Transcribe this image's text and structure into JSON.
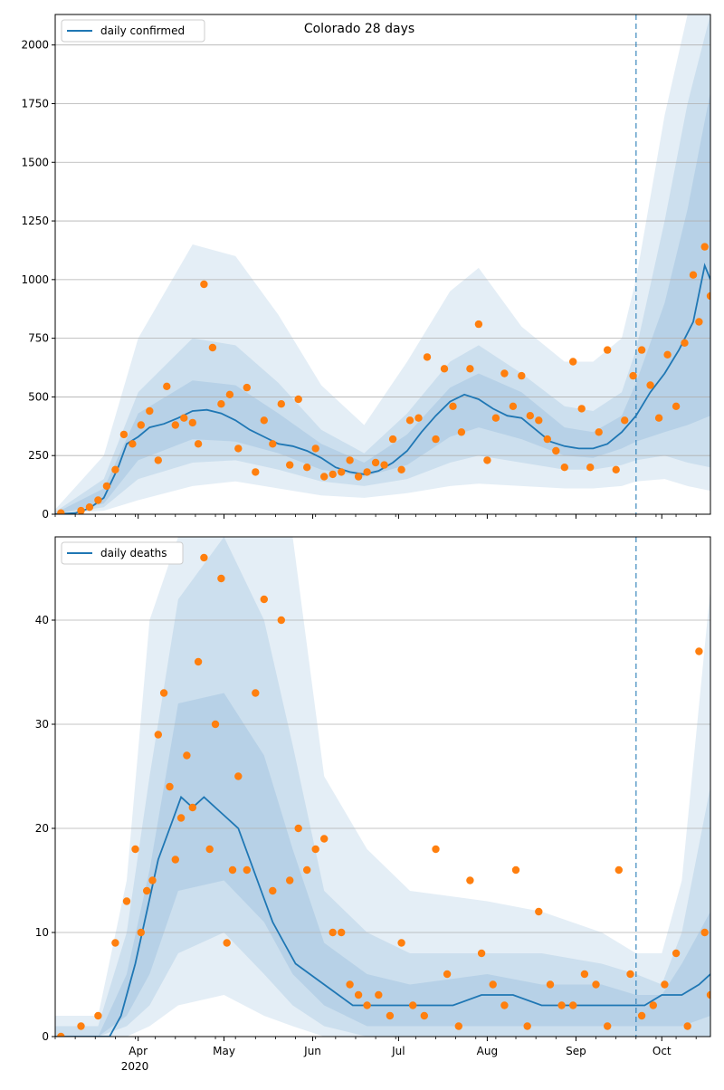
{
  "figure_title": "Colorado 28 days",
  "colors": {
    "line": "#1f77b4",
    "points": "#ff7f0e",
    "band": "#1f77b4",
    "grid": "#b0b0b0"
  },
  "chart_data": [
    {
      "type": "line",
      "panel": "top",
      "title": "Colorado 28 days",
      "legend": "top-left",
      "legend_label": "daily confirmed",
      "grid": "horizontal",
      "xlim": [
        "2020-03-03",
        "2020-10-18"
      ],
      "ylim": [
        0,
        2130
      ],
      "yticks": [
        0,
        250,
        500,
        750,
        1000,
        1250,
        1500,
        1750,
        2000
      ],
      "vline_date": "2020-09-22",
      "line": {
        "x": [
          "2020-03-03",
          "2020-03-10",
          "2020-03-15",
          "2020-03-20",
          "2020-03-25",
          "2020-03-28",
          "2020-04-01",
          "2020-04-05",
          "2020-04-10",
          "2020-04-15",
          "2020-04-20",
          "2020-04-25",
          "2020-04-30",
          "2020-05-05",
          "2020-05-10",
          "2020-05-15",
          "2020-05-20",
          "2020-05-25",
          "2020-05-30",
          "2020-06-04",
          "2020-06-09",
          "2020-06-14",
          "2020-06-19",
          "2020-06-24",
          "2020-06-29",
          "2020-07-04",
          "2020-07-09",
          "2020-07-14",
          "2020-07-19",
          "2020-07-24",
          "2020-07-29",
          "2020-08-03",
          "2020-08-08",
          "2020-08-13",
          "2020-08-18",
          "2020-08-23",
          "2020-08-28",
          "2020-09-02",
          "2020-09-07",
          "2020-09-12",
          "2020-09-17",
          "2020-09-22",
          "2020-09-27",
          "2020-10-02",
          "2020-10-07",
          "2020-10-12",
          "2020-10-16",
          "2020-10-18"
        ],
        "y": [
          0,
          5,
          25,
          70,
          200,
          300,
          330,
          370,
          385,
          410,
          440,
          445,
          430,
          400,
          360,
          330,
          300,
          290,
          270,
          240,
          200,
          180,
          170,
          185,
          220,
          270,
          350,
          420,
          480,
          510,
          490,
          450,
          420,
          410,
          360,
          310,
          290,
          280,
          280,
          300,
          350,
          420,
          520,
          600,
          700,
          820,
          1060,
          1000
        ]
      },
      "bands": [
        {
          "level": "outer",
          "x": [
            "2020-03-03",
            "2020-03-20",
            "2020-04-01",
            "2020-04-20",
            "2020-05-05",
            "2020-05-20",
            "2020-06-04",
            "2020-06-19",
            "2020-07-04",
            "2020-07-19",
            "2020-07-29",
            "2020-08-13",
            "2020-08-28",
            "2020-09-07",
            "2020-09-17",
            "2020-09-22",
            "2020-10-02",
            "2020-10-10",
            "2020-10-18"
          ],
          "low": [
            0,
            15,
            60,
            120,
            140,
            110,
            80,
            70,
            90,
            120,
            130,
            120,
            110,
            110,
            120,
            140,
            150,
            120,
            100
          ],
          "high": [
            20,
            250,
            750,
            1150,
            1100,
            850,
            550,
            380,
            650,
            950,
            1050,
            800,
            650,
            650,
            750,
            1000,
            1700,
            2130,
            2130
          ]
        },
        {
          "level": "middle",
          "x": [
            "2020-03-03",
            "2020-03-20",
            "2020-04-01",
            "2020-04-20",
            "2020-05-05",
            "2020-05-20",
            "2020-06-04",
            "2020-06-19",
            "2020-07-04",
            "2020-07-19",
            "2020-07-29",
            "2020-08-13",
            "2020-08-28",
            "2020-09-07",
            "2020-09-17",
            "2020-09-22",
            "2020-10-02",
            "2020-10-10",
            "2020-10-18"
          ],
          "low": [
            0,
            30,
            150,
            220,
            230,
            190,
            140,
            120,
            150,
            220,
            250,
            220,
            190,
            190,
            210,
            230,
            250,
            220,
            200
          ],
          "high": [
            10,
            150,
            520,
            750,
            720,
            560,
            360,
            260,
            430,
            650,
            720,
            600,
            460,
            440,
            520,
            700,
            1250,
            1750,
            2130
          ]
        },
        {
          "level": "inner",
          "x": [
            "2020-03-03",
            "2020-03-20",
            "2020-04-01",
            "2020-04-20",
            "2020-05-05",
            "2020-05-20",
            "2020-06-04",
            "2020-06-19",
            "2020-07-04",
            "2020-07-19",
            "2020-07-29",
            "2020-08-13",
            "2020-08-28",
            "2020-09-07",
            "2020-09-17",
            "2020-09-22",
            "2020-10-02",
            "2020-10-10",
            "2020-10-18"
          ],
          "low": [
            0,
            45,
            230,
            320,
            310,
            260,
            190,
            160,
            210,
            330,
            370,
            320,
            250,
            240,
            280,
            310,
            350,
            380,
            420
          ],
          "high": [
            5,
            110,
            430,
            570,
            550,
            430,
            300,
            220,
            340,
            540,
            600,
            520,
            370,
            350,
            420,
            560,
            900,
            1300,
            1800
          ]
        }
      ],
      "points": {
        "x": [
          "2020-03-05",
          "2020-03-12",
          "2020-03-15",
          "2020-03-18",
          "2020-03-21",
          "2020-03-24",
          "2020-03-27",
          "2020-03-30",
          "2020-04-02",
          "2020-04-05",
          "2020-04-08",
          "2020-04-11",
          "2020-04-14",
          "2020-04-17",
          "2020-04-20",
          "2020-04-22",
          "2020-04-24",
          "2020-04-27",
          "2020-04-30",
          "2020-05-03",
          "2020-05-06",
          "2020-05-09",
          "2020-05-12",
          "2020-05-15",
          "2020-05-18",
          "2020-05-21",
          "2020-05-24",
          "2020-05-27",
          "2020-05-30",
          "2020-06-02",
          "2020-06-05",
          "2020-06-08",
          "2020-06-11",
          "2020-06-14",
          "2020-06-17",
          "2020-06-20",
          "2020-06-23",
          "2020-06-26",
          "2020-06-29",
          "2020-07-02",
          "2020-07-05",
          "2020-07-08",
          "2020-07-11",
          "2020-07-14",
          "2020-07-17",
          "2020-07-20",
          "2020-07-23",
          "2020-07-26",
          "2020-07-29",
          "2020-08-01",
          "2020-08-04",
          "2020-08-07",
          "2020-08-10",
          "2020-08-13",
          "2020-08-16",
          "2020-08-19",
          "2020-08-22",
          "2020-08-25",
          "2020-08-28",
          "2020-08-31",
          "2020-09-03",
          "2020-09-06",
          "2020-09-09",
          "2020-09-12",
          "2020-09-15",
          "2020-09-18",
          "2020-09-21",
          "2020-09-24",
          "2020-09-27",
          "2020-09-30",
          "2020-10-03",
          "2020-10-06",
          "2020-10-09",
          "2020-10-12",
          "2020-10-14",
          "2020-10-16",
          "2020-10-18"
        ],
        "y": [
          5,
          15,
          30,
          60,
          120,
          190,
          340,
          300,
          380,
          440,
          230,
          545,
          380,
          410,
          390,
          300,
          980,
          710,
          470,
          510,
          280,
          540,
          180,
          400,
          300,
          470,
          210,
          490,
          200,
          280,
          160,
          170,
          180,
          230,
          160,
          180,
          220,
          210,
          320,
          190,
          400,
          410,
          670,
          320,
          620,
          460,
          350,
          620,
          810,
          230,
          410,
          600,
          460,
          590,
          420,
          400,
          320,
          270,
          200,
          650,
          450,
          200,
          350,
          700,
          190,
          400,
          590,
          700,
          550,
          410,
          680,
          460,
          730,
          1020,
          820,
          1140,
          930
        ]
      },
      "xticks": [
        {
          "label": "Apr",
          "date": "2020-04-01"
        },
        {
          "label": "May",
          "date": "2020-05-01"
        },
        {
          "label": "Jun",
          "date": "2020-06-01"
        },
        {
          "label": "Jul",
          "date": "2020-07-01"
        },
        {
          "label": "Aug",
          "date": "2020-08-01"
        },
        {
          "label": "Sep",
          "date": "2020-09-01"
        },
        {
          "label": "Oct",
          "date": "2020-10-01"
        }
      ]
    },
    {
      "type": "line",
      "panel": "bottom",
      "legend": "top-left",
      "legend_label": "daily deaths",
      "grid": "horizontal",
      "xlim": [
        "2020-03-03",
        "2020-10-18"
      ],
      "ylim": [
        0,
        48
      ],
      "yticks": [
        0,
        10,
        20,
        30,
        40
      ],
      "vline_date": "2020-09-22",
      "year_label": "2020",
      "line": {
        "x": [
          "2020-03-03",
          "2020-03-15",
          "2020-03-22",
          "2020-03-26",
          "2020-03-31",
          "2020-04-04",
          "2020-04-08",
          "2020-04-12",
          "2020-04-16",
          "2020-04-20",
          "2020-04-24",
          "2020-04-28",
          "2020-05-02",
          "2020-05-06",
          "2020-05-10",
          "2020-05-14",
          "2020-05-18",
          "2020-05-22",
          "2020-05-26",
          "2020-05-31",
          "2020-06-05",
          "2020-06-10",
          "2020-06-15",
          "2020-06-20",
          "2020-06-25",
          "2020-07-01",
          "2020-07-10",
          "2020-07-20",
          "2020-07-30",
          "2020-08-10",
          "2020-08-20",
          "2020-08-30",
          "2020-09-10",
          "2020-09-20",
          "2020-09-25",
          "2020-10-01",
          "2020-10-08",
          "2020-10-14",
          "2020-10-18"
        ],
        "y": [
          0,
          0,
          0,
          2,
          7,
          12,
          17,
          20,
          23,
          22,
          23,
          22,
          21,
          20,
          17,
          14,
          11,
          9,
          7,
          6,
          5,
          4,
          3,
          3,
          3,
          3,
          3,
          3,
          4,
          4,
          3,
          3,
          3,
          3,
          3,
          4,
          4,
          5,
          6
        ]
      },
      "bands": [
        {
          "level": "outer",
          "x": [
            "2020-03-03",
            "2020-03-18",
            "2020-03-28",
            "2020-04-05",
            "2020-04-15",
            "2020-05-01",
            "2020-05-15",
            "2020-05-25",
            "2020-06-05",
            "2020-06-20",
            "2020-07-05",
            "2020-08-01",
            "2020-08-20",
            "2020-09-10",
            "2020-09-22",
            "2020-10-01",
            "2020-10-08",
            "2020-10-18"
          ],
          "low": [
            0,
            0,
            0,
            1,
            3,
            4,
            2,
            1,
            0,
            0,
            0,
            0,
            0,
            0,
            0,
            0,
            0,
            0
          ],
          "high": [
            2,
            2,
            15,
            40,
            48,
            48,
            48,
            48,
            25,
            18,
            14,
            13,
            12,
            10,
            8,
            8,
            15,
            43
          ]
        },
        {
          "level": "middle",
          "x": [
            "2020-03-03",
            "2020-03-18",
            "2020-03-28",
            "2020-04-05",
            "2020-04-15",
            "2020-05-01",
            "2020-05-15",
            "2020-05-25",
            "2020-06-05",
            "2020-06-20",
            "2020-07-05",
            "2020-08-01",
            "2020-08-20",
            "2020-09-10",
            "2020-09-22",
            "2020-10-01",
            "2020-10-08",
            "2020-10-18"
          ],
          "low": [
            0,
            0,
            1,
            3,
            8,
            10,
            6,
            3,
            1,
            0,
            0,
            0,
            0,
            0,
            0,
            0,
            0,
            0
          ],
          "high": [
            1,
            1,
            10,
            25,
            42,
            48,
            40,
            28,
            14,
            10,
            8,
            8,
            8,
            7,
            6,
            5,
            10,
            24
          ]
        },
        {
          "level": "inner",
          "x": [
            "2020-03-03",
            "2020-03-18",
            "2020-03-28",
            "2020-04-05",
            "2020-04-15",
            "2020-05-01",
            "2020-05-15",
            "2020-05-25",
            "2020-06-05",
            "2020-06-20",
            "2020-07-05",
            "2020-08-01",
            "2020-08-20",
            "2020-09-10",
            "2020-09-22",
            "2020-10-01",
            "2020-10-08",
            "2020-10-18"
          ],
          "low": [
            0,
            0,
            2,
            6,
            14,
            15,
            11,
            6,
            3,
            1,
            1,
            1,
            1,
            1,
            1,
            1,
            1,
            2
          ],
          "high": [
            0,
            0,
            6,
            16,
            32,
            33,
            27,
            18,
            9,
            6,
            5,
            6,
            5,
            5,
            4,
            4,
            7,
            12
          ]
        }
      ],
      "points": {
        "x": [
          "2020-03-05",
          "2020-03-12",
          "2020-03-18",
          "2020-03-24",
          "2020-03-28",
          "2020-03-31",
          "2020-04-02",
          "2020-04-04",
          "2020-04-06",
          "2020-04-08",
          "2020-04-10",
          "2020-04-12",
          "2020-04-14",
          "2020-04-16",
          "2020-04-18",
          "2020-04-20",
          "2020-04-22",
          "2020-04-24",
          "2020-04-26",
          "2020-04-28",
          "2020-04-30",
          "2020-05-02",
          "2020-05-04",
          "2020-05-06",
          "2020-05-09",
          "2020-05-12",
          "2020-05-15",
          "2020-05-18",
          "2020-05-21",
          "2020-05-24",
          "2020-05-27",
          "2020-05-30",
          "2020-06-02",
          "2020-06-05",
          "2020-06-08",
          "2020-06-11",
          "2020-06-14",
          "2020-06-17",
          "2020-06-20",
          "2020-06-24",
          "2020-06-28",
          "2020-07-02",
          "2020-07-06",
          "2020-07-10",
          "2020-07-14",
          "2020-07-18",
          "2020-07-22",
          "2020-07-26",
          "2020-07-30",
          "2020-08-03",
          "2020-08-07",
          "2020-08-11",
          "2020-08-15",
          "2020-08-19",
          "2020-08-23",
          "2020-08-27",
          "2020-08-31",
          "2020-09-04",
          "2020-09-08",
          "2020-09-12",
          "2020-09-16",
          "2020-09-20",
          "2020-09-24",
          "2020-09-28",
          "2020-10-02",
          "2020-10-06",
          "2020-10-10",
          "2020-10-14",
          "2020-10-16",
          "2020-10-18"
        ],
        "y": [
          0,
          1,
          2,
          9,
          13,
          18,
          10,
          14,
          15,
          29,
          33,
          24,
          17,
          21,
          27,
          22,
          36,
          46,
          18,
          30,
          44,
          9,
          16,
          25,
          16,
          33,
          42,
          14,
          40,
          15,
          20,
          16,
          18,
          19,
          10,
          10,
          5,
          4,
          3,
          4,
          2,
          9,
          3,
          2,
          18,
          6,
          1,
          15,
          8,
          5,
          3,
          16,
          1,
          12,
          5,
          3,
          3,
          6,
          5,
          1,
          16,
          6,
          2,
          3,
          5,
          8,
          1,
          37,
          10,
          4
        ]
      },
      "xticks": [
        {
          "label": "Apr",
          "date": "2020-04-01"
        },
        {
          "label": "May",
          "date": "2020-05-01"
        },
        {
          "label": "Jun",
          "date": "2020-06-01"
        },
        {
          "label": "Jul",
          "date": "2020-07-01"
        },
        {
          "label": "Aug",
          "date": "2020-08-01"
        },
        {
          "label": "Sep",
          "date": "2020-09-01"
        },
        {
          "label": "Oct",
          "date": "2020-10-01"
        }
      ]
    }
  ]
}
